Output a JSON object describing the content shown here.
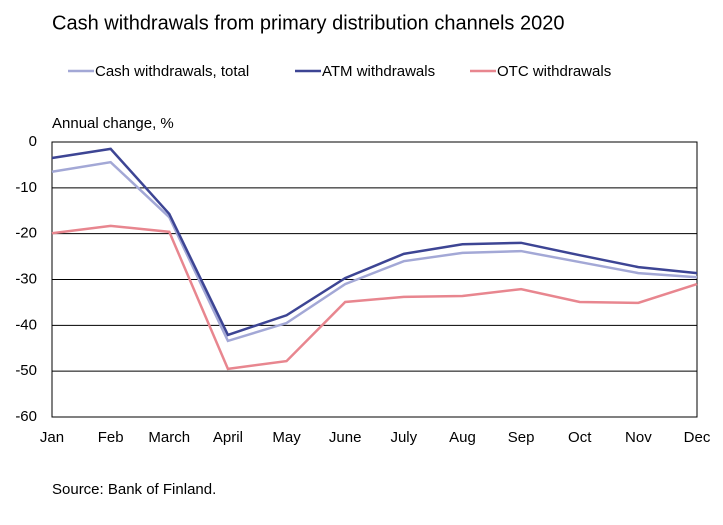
{
  "chart_data": {
    "type": "line",
    "title": "Cash withdrawals  from primary distribution  channels 2020",
    "y_label": "Annual change, %",
    "source": "Source: Bank of Finland.",
    "categories": [
      "Jan",
      "Feb",
      "March",
      "April",
      "May",
      "June",
      "July",
      "Aug",
      "Sep",
      "Oct",
      "Nov",
      "Dec"
    ],
    "series": [
      {
        "name": "Cash withdrawals, total",
        "color": "#a3a8d6",
        "values": [
          -6.5,
          -4.4,
          -16.4,
          -43.4,
          -39.5,
          -31,
          -26,
          -24.2,
          -23.8,
          -26.2,
          -28.6,
          -29.5
        ]
      },
      {
        "name": "ATM withdrawals",
        "color": "#3d4594",
        "values": [
          -3.5,
          -1.5,
          -15.7,
          -42.1,
          -37.8,
          -29.7,
          -24.4,
          -22.3,
          -22,
          -24.7,
          -27.3,
          -28.6
        ]
      },
      {
        "name": "OTC withdrawals",
        "color": "#e8868f",
        "values": [
          -19.9,
          -18.3,
          -19.6,
          -49.5,
          -47.8,
          -34.9,
          -33.8,
          -33.6,
          -32.1,
          -34.9,
          -35.1,
          -31
        ]
      }
    ],
    "ylim": [
      -60,
      0
    ],
    "yticks": [
      0,
      -10,
      -20,
      -30,
      -40,
      -50,
      -60
    ],
    "grid": true
  }
}
